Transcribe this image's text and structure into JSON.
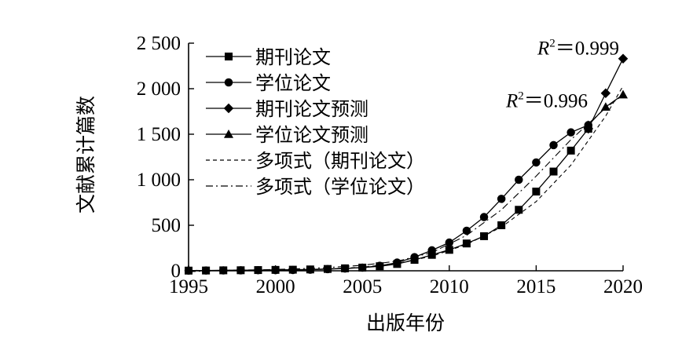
{
  "chart_data": {
    "type": "line",
    "xlabel": "出版年份",
    "ylabel": "文献累计篇数",
    "xlim": [
      1995,
      2020
    ],
    "ylim": [
      0,
      2500
    ],
    "xticks": [
      1995,
      2000,
      2005,
      2010,
      2015,
      2020
    ],
    "xtick_labels": [
      "1995",
      "2000",
      "2005",
      "2010",
      "2015",
      "2020"
    ],
    "yticks": [
      0,
      500,
      1000,
      1500,
      2000,
      2500
    ],
    "ytick_labels": [
      "0",
      "500",
      "1 000",
      "1 500",
      "2 000",
      "2 500"
    ],
    "grid": false,
    "legend_position": "top-left",
    "series": [
      {
        "name": "期刊论文",
        "marker": "square",
        "line": "solid",
        "x": [
          1995,
          1996,
          1997,
          1998,
          1999,
          2000,
          2001,
          2002,
          2003,
          2004,
          2005,
          2006,
          2007,
          2008,
          2009,
          2010,
          2011,
          2012,
          2013,
          2014,
          2015,
          2016,
          2017,
          2018
        ],
        "y": [
          2,
          3,
          5,
          6,
          8,
          10,
          12,
          15,
          20,
          27,
          35,
          50,
          75,
          120,
          175,
          230,
          300,
          380,
          500,
          670,
          870,
          1090,
          1320,
          1560
        ]
      },
      {
        "name": "学位论文",
        "marker": "circle",
        "line": "solid",
        "x": [
          1995,
          1996,
          1997,
          1998,
          1999,
          2000,
          2001,
          2002,
          2003,
          2004,
          2005,
          2006,
          2007,
          2008,
          2009,
          2010,
          2011,
          2012,
          2013,
          2014,
          2015,
          2016,
          2017,
          2018
        ],
        "y": [
          2,
          3,
          4,
          5,
          6,
          7,
          9,
          12,
          18,
          25,
          35,
          55,
          90,
          150,
          225,
          310,
          440,
          590,
          790,
          1000,
          1190,
          1380,
          1520,
          1600
        ]
      },
      {
        "name": "期刊论文预测",
        "marker": "diamond",
        "line": "solid",
        "x": [
          2018,
          2019,
          2020
        ],
        "y": [
          1560,
          1950,
          2330
        ]
      },
      {
        "name": "学位论文预测",
        "marker": "triangle",
        "line": "solid",
        "x": [
          2018,
          2019,
          2020
        ],
        "y": [
          1600,
          1800,
          1935
        ]
      },
      {
        "name": "多项式（期刊论文）",
        "marker": "none",
        "line": "dashed",
        "x": [
          1995,
          1997,
          1999,
          2001,
          2003,
          2005,
          2007,
          2009,
          2011,
          2013,
          2015,
          2017,
          2019,
          2020
        ],
        "y": [
          5,
          3,
          5,
          10,
          20,
          40,
          80,
          160,
          290,
          480,
          760,
          1160,
          1700,
          2030
        ]
      },
      {
        "name": "多项式（学位论文）",
        "marker": "none",
        "line": "dashdot",
        "x": [
          1995,
          1997,
          1999,
          2001,
          2003,
          2005,
          2007,
          2009,
          2011,
          2013,
          2015,
          2017,
          2019,
          2020
        ],
        "y": [
          -10,
          5,
          10,
          20,
          35,
          60,
          105,
          200,
          390,
          670,
          1040,
          1440,
          1790,
          1930
        ]
      }
    ],
    "annotations": [
      {
        "text": "R",
        "sup": "2",
        "rest": "＝0.999",
        "series": "期刊论文预测"
      },
      {
        "text": "R",
        "sup": "2",
        "rest": "＝0.996",
        "series": "学位论文预测"
      }
    ]
  }
}
